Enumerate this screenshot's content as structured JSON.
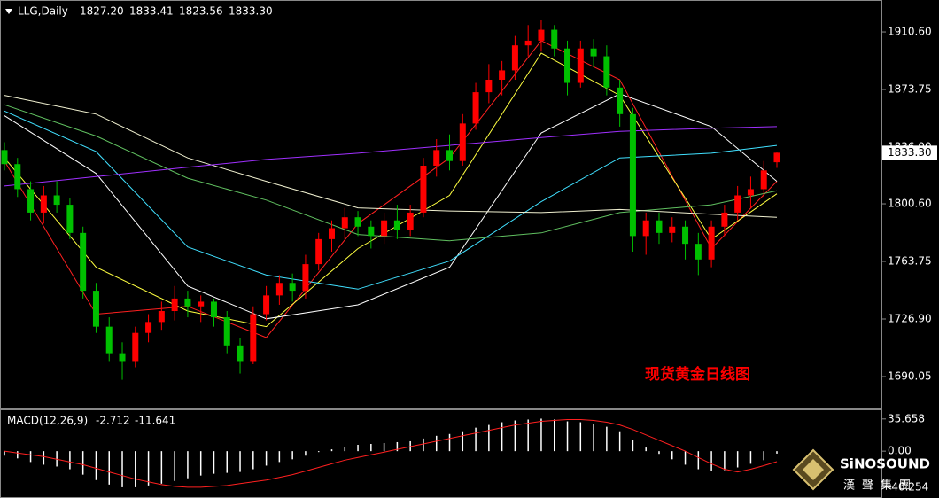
{
  "chart_data": [
    {
      "type": "candlestick",
      "title": "LLG,Daily",
      "last_labels": [
        "1827.20",
        "1833.41",
        "1823.56",
        "1833.30"
      ],
      "up_color": "#ff0000",
      "down_color": "#00c000",
      "candles": [
        [
          1835,
          1840,
          1822,
          1826
        ],
        [
          1826,
          1830,
          1805,
          1810
        ],
        [
          1810,
          1815,
          1790,
          1795
        ],
        [
          1795,
          1812,
          1788,
          1806
        ],
        [
          1806,
          1815,
          1795,
          1800
        ],
        [
          1800,
          1804,
          1778,
          1782
        ],
        [
          1782,
          1786,
          1740,
          1745
        ],
        [
          1745,
          1750,
          1718,
          1722
        ],
        [
          1722,
          1728,
          1700,
          1705
        ],
        [
          1705,
          1712,
          1688,
          1700
        ],
        [
          1700,
          1722,
          1696,
          1718
        ],
        [
          1718,
          1730,
          1712,
          1725
        ],
        [
          1725,
          1738,
          1720,
          1732
        ],
        [
          1732,
          1748,
          1726,
          1740
        ],
        [
          1740,
          1745,
          1728,
          1735
        ],
        [
          1735,
          1742,
          1725,
          1738
        ],
        [
          1738,
          1740,
          1722,
          1728
        ],
        [
          1728,
          1732,
          1705,
          1710
        ],
        [
          1710,
          1715,
          1692,
          1700
        ],
        [
          1700,
          1735,
          1698,
          1730
        ],
        [
          1730,
          1748,
          1726,
          1742
        ],
        [
          1742,
          1755,
          1736,
          1750
        ],
        [
          1750,
          1756,
          1738,
          1745
        ],
        [
          1745,
          1768,
          1740,
          1762
        ],
        [
          1762,
          1782,
          1758,
          1778
        ],
        [
          1778,
          1790,
          1770,
          1785
        ],
        [
          1785,
          1798,
          1778,
          1792
        ],
        [
          1792,
          1796,
          1780,
          1786
        ],
        [
          1786,
          1790,
          1772,
          1780
        ],
        [
          1780,
          1795,
          1775,
          1790
        ],
        [
          1790,
          1800,
          1778,
          1784
        ],
        [
          1784,
          1800,
          1780,
          1795
        ],
        [
          1795,
          1830,
          1792,
          1825
        ],
        [
          1825,
          1842,
          1818,
          1835
        ],
        [
          1835,
          1845,
          1822,
          1828
        ],
        [
          1828,
          1858,
          1825,
          1852
        ],
        [
          1852,
          1878,
          1848,
          1872
        ],
        [
          1872,
          1890,
          1865,
          1880
        ],
        [
          1880,
          1892,
          1870,
          1886
        ],
        [
          1886,
          1908,
          1880,
          1902
        ],
        [
          1902,
          1915,
          1895,
          1905
        ],
        [
          1905,
          1918,
          1898,
          1912
        ],
        [
          1912,
          1915,
          1895,
          1900
        ],
        [
          1900,
          1905,
          1870,
          1878
        ],
        [
          1878,
          1905,
          1875,
          1900
        ],
        [
          1900,
          1906,
          1888,
          1895
        ],
        [
          1895,
          1902,
          1870,
          1875
        ],
        [
          1875,
          1880,
          1850,
          1858
        ],
        [
          1858,
          1862,
          1770,
          1780
        ],
        [
          1780,
          1795,
          1768,
          1790
        ],
        [
          1790,
          1795,
          1775,
          1782
        ],
        [
          1782,
          1792,
          1776,
          1786
        ],
        [
          1786,
          1790,
          1765,
          1775
        ],
        [
          1775,
          1782,
          1755,
          1765
        ],
        [
          1765,
          1790,
          1760,
          1786
        ],
        [
          1786,
          1800,
          1780,
          1795
        ],
        [
          1795,
          1812,
          1790,
          1806
        ],
        [
          1806,
          1818,
          1798,
          1810
        ],
        [
          1810,
          1828,
          1805,
          1822
        ],
        [
          1827.2,
          1833.41,
          1823.56,
          1833.3
        ]
      ],
      "series": [
        {
          "color": "#ff2020",
          "x": [
            0,
            7,
            14,
            20,
            27,
            34,
            41,
            47,
            54,
            59
          ],
          "values": [
            1828,
            1730,
            1735,
            1715,
            1788,
            1830,
            1905,
            1880,
            1772,
            1815
          ]
        },
        {
          "color": "#ffff40",
          "x": [
            0,
            7,
            14,
            20,
            27,
            34,
            41,
            47,
            54,
            59
          ],
          "values": [
            1830,
            1760,
            1732,
            1722,
            1772,
            1806,
            1897,
            1870,
            1778,
            1807
          ]
        },
        {
          "color": "#ffffff",
          "x": [
            0,
            7,
            14,
            20,
            27,
            34,
            41,
            47,
            54,
            59
          ],
          "values": [
            1857,
            1820,
            1748,
            1727,
            1736,
            1760,
            1846,
            1871,
            1850,
            1815
          ]
        },
        {
          "color": "#40e0ff",
          "x": [
            0,
            7,
            14,
            20,
            27,
            34,
            41,
            47,
            54,
            59
          ],
          "values": [
            1860,
            1834,
            1773,
            1755,
            1746,
            1764,
            1802,
            1830,
            1833,
            1838
          ]
        },
        {
          "color": "#60c060",
          "x": [
            0,
            7,
            14,
            20,
            27,
            34,
            41,
            47,
            54,
            59
          ],
          "values": [
            1864,
            1844,
            1817,
            1803,
            1781,
            1777,
            1782,
            1795,
            1800,
            1809
          ]
        },
        {
          "color": "#f0f0d0",
          "x": [
            0,
            7,
            14,
            20,
            27,
            34,
            41,
            47,
            54,
            59
          ],
          "values": [
            1870,
            1858,
            1830,
            1815,
            1798,
            1796,
            1795,
            1797,
            1794,
            1792
          ]
        },
        {
          "color": "#a030ff",
          "x": [
            0,
            7,
            14,
            20,
            27,
            34,
            41,
            47,
            54,
            59
          ],
          "values": [
            1812,
            1818,
            1824,
            1829,
            1833,
            1838,
            1843,
            1847,
            1849,
            1850
          ]
        }
      ],
      "ylim": [
        1670.2,
        1929.9
      ],
      "yticks": [
        {
          "value": 1690.05,
          "label": "1690.05"
        },
        {
          "value": 1726.9,
          "label": "1726.90"
        },
        {
          "value": 1763.75,
          "label": "1763.75"
        },
        {
          "value": 1800.6,
          "label": "1800.60"
        },
        {
          "value": 1836.9,
          "label": "1836.90"
        },
        {
          "value": 1873.75,
          "label": "1873.75"
        },
        {
          "value": 1910.6,
          "label": "1910.60"
        }
      ],
      "annotation": "现货黄金日线图"
    },
    {
      "type": "macd",
      "title": "MACD(12,26,9)",
      "histogram": {
        "color": "#ffffff",
        "values": [
          -5,
          -8,
          -12,
          -15,
          -17,
          -20,
          -26,
          -32,
          -37,
          -40,
          -40,
          -38,
          -36,
          -33,
          -30,
          -27,
          -25,
          -24,
          -23,
          -20,
          -16,
          -12,
          -9,
          -5,
          -1,
          2,
          5,
          7,
          8,
          9,
          10,
          11,
          14,
          17,
          19,
          22,
          26,
          29,
          32,
          34,
          35,
          36,
          35,
          33,
          32,
          30,
          27,
          22,
          12,
          4,
          -3,
          -9,
          -15,
          -20,
          -22,
          -21,
          -18,
          -14,
          -10,
          -2.712
        ]
      },
      "signal": {
        "color": "#ff2020",
        "values": [
          0,
          -2,
          -4,
          -6,
          -9,
          -12,
          -15,
          -19,
          -23,
          -27,
          -31,
          -34,
          -37,
          -39,
          -40,
          -40,
          -39,
          -38,
          -36,
          -34,
          -32,
          -29,
          -26,
          -22,
          -18,
          -14,
          -10,
          -7,
          -4,
          -1,
          2,
          5,
          8,
          11,
          14,
          17,
          20,
          23,
          26,
          29,
          31,
          33,
          34,
          35,
          35,
          34,
          32,
          29,
          24,
          18,
          12,
          6,
          0,
          -7,
          -14,
          -20,
          -23,
          -20,
          -16,
          -11.641
        ]
      },
      "ylim": [
        -49.9,
        46.26
      ],
      "yticks": [
        -40.254,
        {
          "value": 0,
          "label": "0.00"
        },
        35.658
      ]
    }
  ],
  "logo": {
    "name": "SiNOSOUND",
    "subtitle": "漢聲集團"
  }
}
